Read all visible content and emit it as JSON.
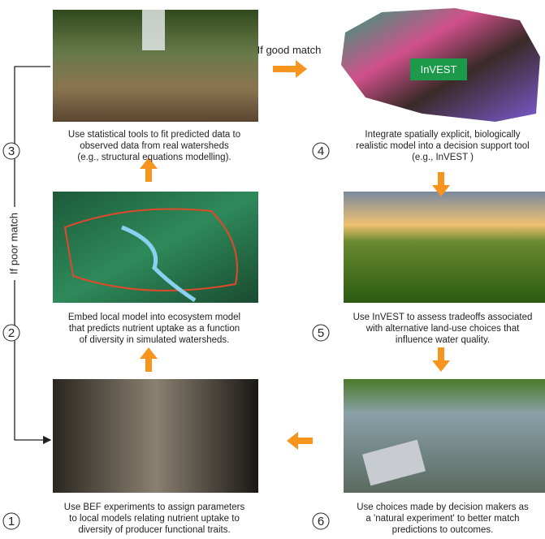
{
  "labels": {
    "good_match": "If good match",
    "poor_match": "If poor match",
    "invest_badge": "InVEST"
  },
  "panels": [
    {
      "number": "1",
      "caption": [
        "Use BEF experiments to assign parameters",
        "to local models relating nutrient uptake to",
        "diversity of producer functional traits."
      ]
    },
    {
      "number": "2",
      "caption": [
        "Embed local model into ecosystem model",
        "that predicts nutrient uptake as a function",
        "of diversity in simulated watersheds."
      ]
    },
    {
      "number": "3",
      "caption": [
        "Use statistical tools to fit predicted data to",
        "observed data from real watersheds",
        "(e.g., structural equations modelling)."
      ]
    },
    {
      "number": "4",
      "caption": [
        "Integrate spatially explicit, biologically",
        "realistic model into a decision support tool",
        "(e.g., InVEST )"
      ]
    },
    {
      "number": "5",
      "caption": [
        "Use InVEST to assess tradeoffs associated",
        "with alternative land-use choices that",
        "influence water quality."
      ]
    },
    {
      "number": "6",
      "caption": [
        "Use choices made by decision makers as",
        "a 'natural experiment' to better match",
        "predictions to outcomes."
      ]
    }
  ]
}
